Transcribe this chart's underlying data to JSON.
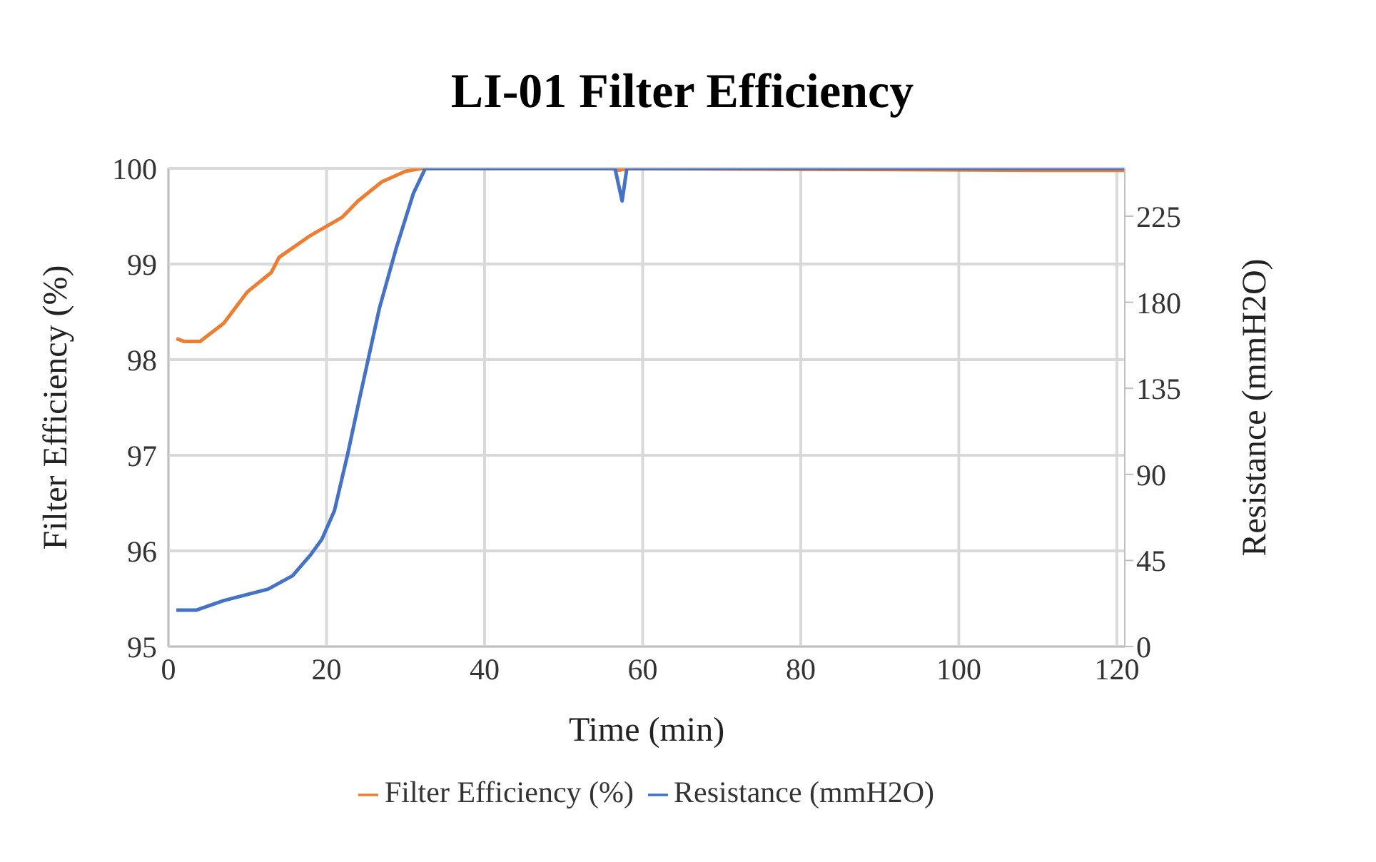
{
  "chart_data": {
    "type": "line",
    "title": "LI-01 Filter Efficiency",
    "xlabel": "Time (min)",
    "ylabel": "Filter Efficiency (%)",
    "y2label": "Resistance (mmH2O)",
    "xlim": [
      0,
      121
    ],
    "xticks": [
      0,
      20,
      40,
      60,
      80,
      100,
      120
    ],
    "ylim": [
      95,
      100
    ],
    "yticks": [
      95,
      96,
      97,
      98,
      99,
      100
    ],
    "y2lim": [
      0,
      250
    ],
    "y2ticks": [
      0,
      45,
      90,
      135,
      180,
      225
    ],
    "grid": true,
    "legend": "bottom",
    "marker": "none",
    "line_style": "solid",
    "series": [
      {
        "name": "Filter Efficiency (%)",
        "color": "#ed7d31",
        "x": [
          1,
          2,
          4,
          7,
          10,
          13,
          14,
          18,
          22,
          24,
          27,
          30,
          32,
          56,
          57,
          58,
          110,
          121
        ],
        "values": [
          98.22,
          98.19,
          98.19,
          98.38,
          98.71,
          98.91,
          99.07,
          99.3,
          99.49,
          99.66,
          99.86,
          99.97,
          100,
          100,
          99.98,
          100,
          99.98,
          99.98
        ]
      },
      {
        "name": "Resistance (mmH2O)",
        "color": "#4472c4",
        "axis": "y2",
        "x": [
          1,
          3.5,
          7,
          12.6,
          15.7,
          18,
          19.4,
          21,
          22.7,
          24.2,
          26.7,
          28.8,
          31,
          32.5,
          56.5,
          57.4,
          58,
          121
        ],
        "values": [
          19,
          19,
          24,
          30,
          37,
          48,
          56,
          71,
          101,
          130,
          177,
          208,
          237,
          250,
          250,
          233,
          250,
          250
        ]
      }
    ]
  }
}
